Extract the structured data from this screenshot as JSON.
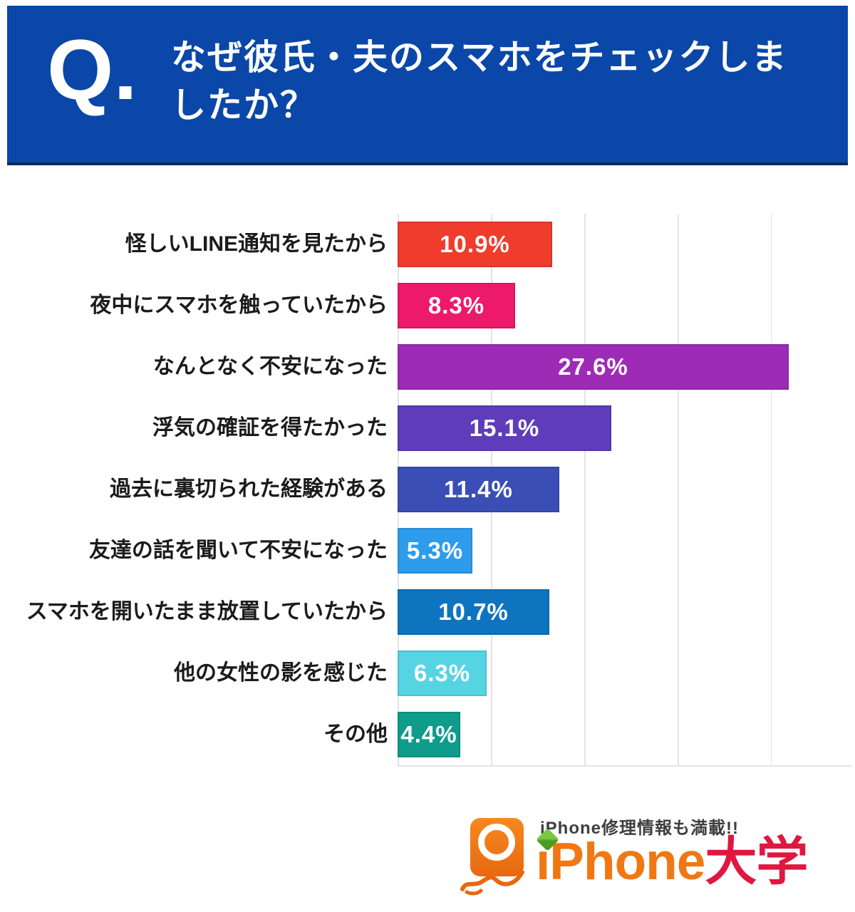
{
  "header": {
    "q_label": "Q.",
    "title_lines": [
      "なぜ彼氏・夫のスマホをチェックしま",
      "したか？"
    ],
    "bg_color": "#0A47A8",
    "text_color": "#ffffff"
  },
  "chart_data": {
    "type": "bar",
    "orientation": "horizontal",
    "title": "なぜ彼氏・夫のスマホをチェックしましたか？",
    "categories": [
      "怪しいLINE通知を見たから",
      "夜中にスマホを触っていたから",
      "なんとなく不安になった",
      "浮気の確証を得たかった",
      "過去に裏切られた経験がある",
      "友達の話を聞いて不安になった",
      "スマホを開いたまま放置していたから",
      "他の女性の影を感じた",
      "その他"
    ],
    "values": [
      10.9,
      8.3,
      27.6,
      15.1,
      11.4,
      5.3,
      10.7,
      6.3,
      4.4
    ],
    "value_labels": [
      "10.9%",
      "8.3%",
      "27.6%",
      "15.1%",
      "11.4%",
      "5.3%",
      "10.7%",
      "6.3%",
      "4.4%"
    ],
    "bar_colors": [
      "#EF3C2C",
      "#ED196B",
      "#9D2BB5",
      "#5F3CBA",
      "#3A4EB5",
      "#2E9CEC",
      "#0E74C0",
      "#57D4E4",
      "#0F9C8B"
    ],
    "value_label_color": "#ffffff",
    "xlim": [
      0,
      32
    ],
    "grid": true,
    "grid_color": "#e4e4e4",
    "legend": "none"
  },
  "footer": {
    "tagline": "iPhone修理情報も満載!!",
    "brand_orange": "iPhone",
    "brand_red": "大学",
    "brand_orange_color": "#F07814",
    "brand_red_color": "#E0173F",
    "icon_color": "#EF7816"
  }
}
